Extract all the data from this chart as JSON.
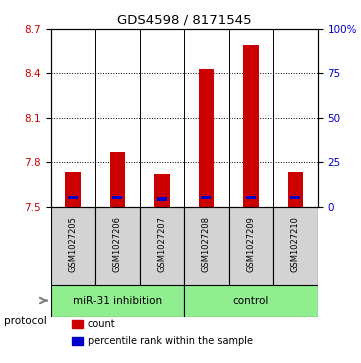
{
  "title": "GDS4598 / 8171545",
  "samples": [
    "GSM1027205",
    "GSM1027206",
    "GSM1027207",
    "GSM1027208",
    "GSM1027209",
    "GSM1027210"
  ],
  "red_values": [
    7.73,
    7.87,
    7.72,
    8.43,
    8.59,
    7.73
  ],
  "blue_values": [
    7.56,
    7.56,
    7.55,
    7.56,
    7.56,
    7.56
  ],
  "y_min": 7.5,
  "y_max": 8.7,
  "y_ticks_left": [
    7.5,
    7.8,
    8.1,
    8.4,
    8.7
  ],
  "y_right_labels": [
    "0",
    "25",
    "50",
    "75",
    "100%"
  ],
  "red_color": "#cc0000",
  "blue_color": "#0000cc",
  "group_bg": "#90ee90",
  "sample_bg": "#d3d3d3",
  "legend_count": "count",
  "legend_pct": "percentile rank within the sample",
  "group1_label": "miR-31 inhibition",
  "group2_label": "control",
  "protocol_label": "protocol"
}
